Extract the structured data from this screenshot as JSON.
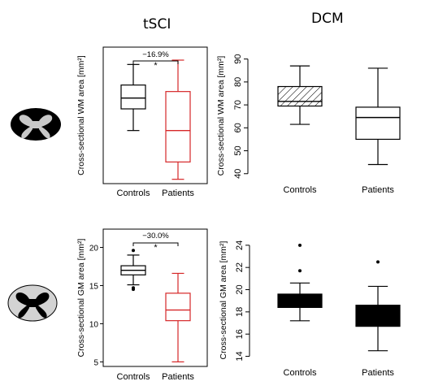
{
  "headers": {
    "left": "tSCI",
    "right": "DCM"
  },
  "chart_data": [
    {
      "id": "tsci_wm",
      "type": "box",
      "ylabel": "Cross-sectional WM area [mm²]",
      "ylim": [
        35,
        98
      ],
      "yticks": [],
      "categories": [
        "Controls",
        "Patients"
      ],
      "boxes": [
        {
          "label": "Controls",
          "color": "#000000",
          "whisker_low": 59.5,
          "q1": 69.5,
          "median": 74.5,
          "q3": 80.5,
          "whisker_high": 90,
          "outliers": []
        },
        {
          "label": "Patients",
          "color": "#d62728",
          "whisker_low": 37,
          "q1": 45,
          "median": 59.5,
          "q3": 77.5,
          "whisker_high": 92,
          "outliers": []
        }
      ],
      "annotation": {
        "text": "−16.9%",
        "star": "*"
      }
    },
    {
      "id": "dcm_wm",
      "type": "box",
      "ylabel": "Cross-sectional WM area [mm²]",
      "ylim": [
        38.5,
        92
      ],
      "yticks": [
        40,
        50,
        60,
        70,
        80,
        90
      ],
      "categories": [
        "Controls",
        "Patients"
      ],
      "boxes": [
        {
          "label": "Controls",
          "color": "#000000",
          "whisker_low": 61.5,
          "q1": 69.5,
          "median": 71.5,
          "q3": 78,
          "whisker_high": 87,
          "outliers": [],
          "fill": "hatched"
        },
        {
          "label": "Patients",
          "color": "#000000",
          "whisker_low": 44,
          "q1": 55,
          "median": 64.5,
          "q3": 69,
          "whisker_high": 86,
          "outliers": [],
          "fill": "none"
        }
      ]
    },
    {
      "id": "tsci_gm",
      "type": "box",
      "ylabel": "Cross-sectional GM area [mm²]",
      "ylim": [
        4.4,
        22.4
      ],
      "yticks": [
        5,
        10,
        15,
        20
      ],
      "categories": [
        "Controls",
        "Patients"
      ],
      "boxes": [
        {
          "label": "Controls",
          "color": "#000000",
          "whisker_low": 15.1,
          "q1": 16.4,
          "median": 17,
          "q3": 17.6,
          "whisker_high": 19,
          "outliers": [
            14.5,
            14.7,
            19.6
          ]
        },
        {
          "label": "Patients",
          "color": "#d62728",
          "whisker_low": 5,
          "q1": 10.4,
          "median": 11.8,
          "q3": 14,
          "whisker_high": 16.6,
          "outliers": []
        }
      ],
      "annotation": {
        "text": "−30.0%",
        "star": "*"
      }
    },
    {
      "id": "dcm_gm",
      "type": "box",
      "ylabel": "Cross-sectional GM area [mm²]",
      "ylim": [
        13.6,
        24.5
      ],
      "yticks": [
        14,
        16,
        18,
        20,
        22,
        24
      ],
      "categories": [
        "Controls",
        "Patients"
      ],
      "boxes": [
        {
          "label": "Controls",
          "color": "#000000",
          "whisker_low": 17.2,
          "q1": 18.4,
          "median": 19,
          "q3": 19.6,
          "whisker_high": 20.6,
          "outliers": [
            21.7,
            24
          ],
          "fill": "solid"
        },
        {
          "label": "Patients",
          "color": "#000000",
          "whisker_low": 14.5,
          "q1": 16.7,
          "median": 17.7,
          "q3": 18.6,
          "whisker_high": 20.3,
          "outliers": [
            22.5
          ],
          "fill": "solid"
        }
      ]
    }
  ],
  "icons": [
    "spinal-cord-wm-icon",
    "spinal-cord-gm-icon"
  ]
}
